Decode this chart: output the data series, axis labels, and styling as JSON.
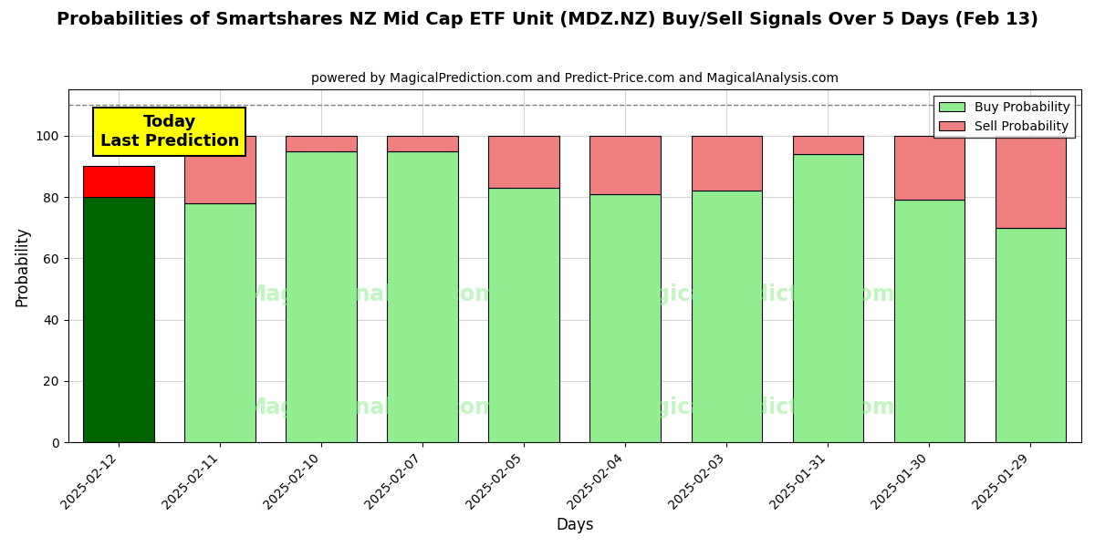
{
  "title": "Probabilities of Smartshares NZ Mid Cap ETF Unit (MDZ.NZ) Buy/Sell Signals Over 5 Days (Feb 13)",
  "subtitle": "powered by MagicalPrediction.com and Predict-Price.com and MagicalAnalysis.com",
  "xlabel": "Days",
  "ylabel": "Probability",
  "categories": [
    "2025-02-12",
    "2025-02-11",
    "2025-02-10",
    "2025-02-07",
    "2025-02-05",
    "2025-02-04",
    "2025-02-03",
    "2025-01-31",
    "2025-01-30",
    "2025-01-29"
  ],
  "buy_values": [
    80,
    78,
    95,
    95,
    83,
    81,
    82,
    94,
    79,
    70
  ],
  "sell_values": [
    10,
    22,
    5,
    5,
    17,
    19,
    18,
    6,
    21,
    30
  ],
  "today_buy_color": "#006400",
  "today_sell_color": "#FF0000",
  "buy_color": "#90EE90",
  "sell_color": "#F08080",
  "today_annotation_bg": "#FFFF00",
  "today_annotation_text": "Today\nLast Prediction",
  "ylim": [
    0,
    115
  ],
  "yticks": [
    0,
    20,
    40,
    60,
    80,
    100
  ],
  "dashed_line_y": 110,
  "legend_buy_label": "Buy Probability",
  "legend_sell_label": "Sell Probability",
  "bg_color": "#ffffff",
  "title_fontsize": 14,
  "subtitle_fontsize": 10
}
